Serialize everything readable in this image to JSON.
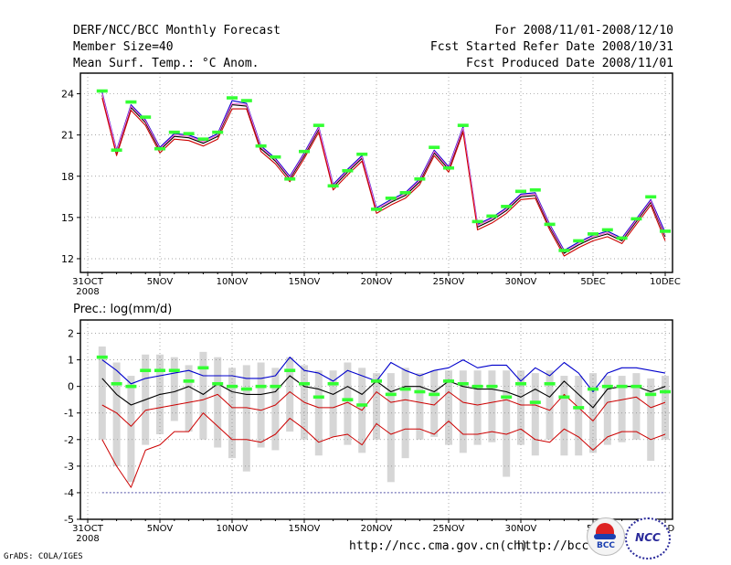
{
  "header": {
    "left": [
      "DERF/NCC/BCC Monthly Forecast",
      "Member Size=40",
      "Mean Surf. Temp.: °C Anom."
    ],
    "right": [
      "For 2008/11/01-2008/12/10",
      "Fcst Started Refer Date 2008/10/31",
      "Fcst Produced Date 2008/11/01"
    ]
  },
  "footer": {
    "url1": "http://ncc.cma.gov.cn(ch)",
    "url2": "http://bcc.c",
    "credit": "GrADS: COLA/IGES",
    "logo1_label": "BCC",
    "logo2_label": "NCC"
  },
  "colors": {
    "upper": "#0000cc",
    "mean": "#000000",
    "lower": "#cc0000",
    "mid": "#ff6bd6",
    "green": "#33ff33",
    "bar": "#d6d6d6"
  },
  "chart_data": [
    {
      "type": "line",
      "title": "Mean Surf. Temp.: °C Anom.",
      "x_ticks": [
        "31OCT",
        "5NOV",
        "10NOV",
        "15NOV",
        "20NOV",
        "25NOV",
        "30NOV",
        "5DEC",
        "10DEC"
      ],
      "x_tick_days": [
        0,
        5,
        10,
        15,
        20,
        25,
        30,
        35,
        40
      ],
      "x_sublabel": "2008",
      "ylim": [
        11,
        25.5
      ],
      "y_ticks": [
        12,
        15,
        18,
        21,
        24
      ],
      "x": [
        1,
        2,
        3,
        4,
        5,
        6,
        7,
        8,
        9,
        10,
        11,
        12,
        13,
        14,
        15,
        16,
        17,
        18,
        19,
        20,
        21,
        22,
        23,
        24,
        25,
        26,
        27,
        28,
        29,
        30,
        31,
        32,
        33,
        34,
        35,
        36,
        37,
        38,
        39,
        40
      ],
      "series": [
        {
          "name": "upper",
          "values": [
            24.1,
            19.9,
            23.2,
            22.1,
            20.1,
            21.1,
            21.0,
            20.6,
            21.1,
            23.5,
            23.3,
            20.2,
            19.3,
            18.0,
            19.7,
            21.6,
            17.4,
            18.5,
            19.5,
            15.7,
            16.3,
            16.8,
            17.8,
            19.9,
            18.7,
            21.6,
            14.5,
            15.0,
            15.7,
            16.7,
            16.8,
            14.5,
            12.6,
            13.2,
            13.7,
            14.0,
            13.5,
            14.9,
            16.3,
            13.9
          ]
        },
        {
          "name": "mean",
          "values": [
            23.9,
            19.7,
            23.0,
            21.9,
            19.9,
            20.9,
            20.8,
            20.4,
            20.9,
            23.2,
            23.1,
            20.0,
            19.1,
            17.8,
            19.5,
            21.4,
            17.2,
            18.3,
            19.3,
            15.5,
            16.1,
            16.6,
            17.6,
            19.7,
            18.5,
            21.4,
            14.3,
            14.8,
            15.5,
            16.5,
            16.6,
            14.3,
            12.4,
            13.0,
            13.5,
            13.8,
            13.3,
            14.7,
            16.1,
            13.6
          ]
        },
        {
          "name": "lower",
          "values": [
            23.7,
            19.5,
            22.8,
            21.7,
            19.7,
            20.7,
            20.6,
            20.2,
            20.7,
            22.9,
            22.9,
            19.8,
            18.9,
            17.6,
            19.3,
            21.2,
            17.0,
            18.1,
            19.1,
            15.3,
            15.9,
            16.4,
            17.4,
            19.5,
            18.3,
            21.2,
            14.1,
            14.6,
            15.3,
            16.3,
            16.4,
            14.1,
            12.2,
            12.8,
            13.3,
            13.6,
            13.1,
            14.5,
            15.9,
            13.3
          ]
        },
        {
          "name": "observed",
          "values": [
            24.2,
            19.9,
            23.4,
            22.3,
            20.0,
            21.2,
            21.1,
            20.7,
            21.2,
            23.7,
            23.5,
            20.2,
            19.4,
            17.8,
            19.8,
            21.7,
            17.3,
            18.4,
            19.6,
            15.6,
            16.4,
            16.8,
            17.8,
            20.1,
            18.6,
            21.7,
            14.7,
            15.1,
            15.8,
            16.9,
            17.0,
            14.5,
            12.6,
            13.3,
            13.8,
            14.1,
            13.5,
            14.9,
            16.5,
            14.0
          ]
        }
      ]
    },
    {
      "type": "bar",
      "title": "Prec.: log(mm/d)",
      "x_ticks": [
        "31OCT",
        "5NOV",
        "10NOV",
        "15NOV",
        "20NOV",
        "25NOV",
        "30NOV",
        "5D",
        "10D"
      ],
      "x_tick_days": [
        0,
        5,
        10,
        15,
        20,
        25,
        30,
        35,
        40
      ],
      "x_sublabel": "2008",
      "ylim": [
        -5,
        2.5
      ],
      "y_ticks": [
        -5,
        -4,
        -3,
        -2,
        -1,
        0,
        1,
        2
      ],
      "x": [
        1,
        2,
        3,
        4,
        5,
        6,
        7,
        8,
        9,
        10,
        11,
        12,
        13,
        14,
        15,
        16,
        17,
        18,
        19,
        20,
        21,
        22,
        23,
        24,
        25,
        26,
        27,
        28,
        29,
        30,
        31,
        32,
        33,
        34,
        35,
        36,
        37,
        38,
        39,
        40
      ],
      "bars": {
        "top": [
          1.5,
          0.9,
          0.4,
          1.2,
          1.2,
          1.1,
          0.8,
          1.3,
          1.1,
          0.7,
          0.8,
          0.9,
          0.7,
          1.1,
          0.8,
          0.6,
          0.6,
          0.9,
          0.7,
          0.5,
          0.5,
          0.7,
          0.5,
          0.6,
          0.6,
          0.6,
          0.6,
          0.6,
          0.6,
          0.6,
          0.5,
          0.6,
          0.4,
          0.4,
          0.5,
          0.4,
          0.4,
          0.5,
          0.3,
          0.4
        ],
        "bottom": [
          -2.0,
          -3.0,
          -3.6,
          -2.2,
          -1.8,
          -1.3,
          -1.7,
          -2.0,
          -2.3,
          -2.7,
          -3.2,
          -2.3,
          -2.4,
          -1.7,
          -2.0,
          -2.6,
          -1.9,
          -2.2,
          -2.5,
          -2.0,
          -3.6,
          -2.7,
          -2.0,
          -1.9,
          -2.2,
          -2.5,
          -2.2,
          -2.1,
          -3.4,
          -2.2,
          -2.6,
          -2.0,
          -2.6,
          -2.6,
          -2.5,
          -2.2,
          -2.1,
          -2.0,
          -2.8,
          -2.0
        ]
      },
      "series": [
        {
          "name": "upper",
          "values": [
            1.0,
            0.6,
            0.1,
            0.3,
            0.4,
            0.5,
            0.6,
            0.4,
            0.4,
            0.4,
            0.3,
            0.3,
            0.4,
            1.1,
            0.6,
            0.5,
            0.2,
            0.6,
            0.4,
            0.2,
            0.9,
            0.6,
            0.4,
            0.6,
            0.7,
            1.0,
            0.7,
            0.8,
            0.8,
            0.2,
            0.7,
            0.4,
            0.9,
            0.5,
            -0.2,
            0.5,
            0.7,
            0.7,
            0.6,
            0.5
          ]
        },
        {
          "name": "mean",
          "values": [
            0.3,
            -0.3,
            -0.7,
            -0.5,
            -0.3,
            -0.2,
            0.0,
            -0.3,
            0.1,
            -0.2,
            -0.3,
            -0.3,
            -0.2,
            0.4,
            0.0,
            -0.1,
            -0.3,
            0.0,
            -0.3,
            0.2,
            -0.2,
            0.0,
            0.0,
            -0.2,
            0.2,
            0.0,
            -0.1,
            -0.1,
            -0.2,
            -0.4,
            -0.1,
            -0.4,
            0.2,
            -0.3,
            -0.8,
            -0.1,
            0.0,
            0.0,
            -0.2,
            0.0
          ]
        },
        {
          "name": "lower1",
          "values": [
            -0.7,
            -1.0,
            -1.5,
            -0.9,
            -0.8,
            -0.7,
            -0.6,
            -0.5,
            -0.3,
            -0.8,
            -0.8,
            -0.9,
            -0.7,
            -0.2,
            -0.6,
            -0.8,
            -0.8,
            -0.6,
            -0.9,
            -0.2,
            -0.6,
            -0.5,
            -0.6,
            -0.7,
            -0.2,
            -0.6,
            -0.7,
            -0.6,
            -0.5,
            -0.7,
            -0.7,
            -0.9,
            -0.3,
            -0.8,
            -1.3,
            -0.6,
            -0.5,
            -0.4,
            -0.8,
            -0.6
          ]
        },
        {
          "name": "lower2",
          "values": [
            -2.0,
            -3.0,
            -3.8,
            -2.4,
            -2.2,
            -1.7,
            -1.7,
            -1.0,
            -1.5,
            -2.0,
            -2.0,
            -2.1,
            -1.8,
            -1.2,
            -1.6,
            -2.1,
            -1.9,
            -1.8,
            -2.2,
            -1.4,
            -1.8,
            -1.6,
            -1.6,
            -1.8,
            -1.3,
            -1.8,
            -1.8,
            -1.7,
            -1.8,
            -1.6,
            -2.0,
            -2.1,
            -1.6,
            -1.9,
            -2.4,
            -1.9,
            -1.7,
            -1.7,
            -2.0,
            -1.8
          ]
        },
        {
          "name": "observed",
          "values": [
            1.1,
            0.1,
            0.0,
            0.6,
            0.6,
            0.6,
            0.2,
            0.7,
            0.1,
            0.0,
            -0.1,
            0.0,
            0.0,
            0.6,
            0.1,
            -0.4,
            0.1,
            -0.5,
            -0.7,
            0.2,
            -0.3,
            -0.1,
            -0.2,
            -0.3,
            0.2,
            0.1,
            0.0,
            0.0,
            -0.4,
            0.1,
            -0.6,
            0.1,
            -0.4,
            -0.8,
            -0.1,
            0.0,
            0.0,
            0.0,
            -0.3,
            -0.2
          ]
        },
        {
          "name": "floor",
          "values": [
            -4,
            -4,
            -4,
            -4,
            -4,
            -4,
            -4,
            -4,
            -4,
            -4,
            -4,
            -4,
            -4,
            -4,
            -4,
            -4,
            -4,
            -4,
            -4,
            -4,
            -4,
            -4,
            -4,
            -4,
            -4,
            -4,
            -4,
            -4,
            -4,
            -4,
            -4,
            -4,
            -4,
            -4,
            -4,
            -4,
            -4,
            -4,
            -4,
            -4
          ]
        }
      ]
    }
  ]
}
